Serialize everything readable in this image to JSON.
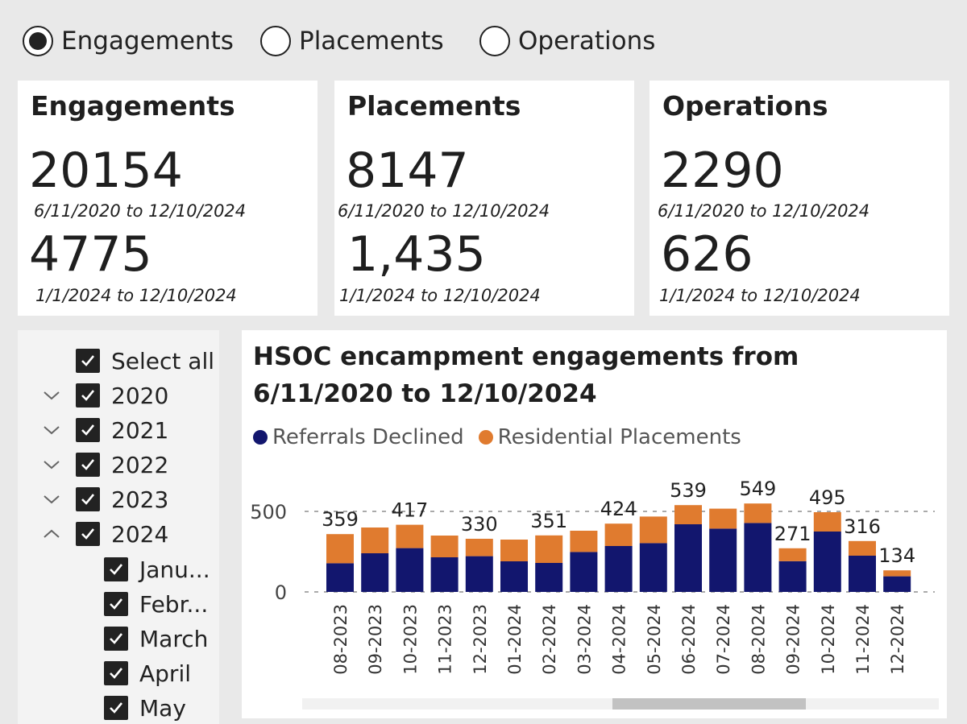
{
  "view_toggle": {
    "options": [
      "Engagements",
      "Placements",
      "Operations"
    ],
    "selected": "Engagements"
  },
  "kpis": [
    {
      "title": "Engagements",
      "total": "20154",
      "total_range": "6/11/2020 to 12/10/2024",
      "ytd": "4775",
      "ytd_range": "1/1/2024 to 12/10/2024"
    },
    {
      "title": "Placements",
      "total": "8147",
      "total_range": "6/11/2020 to 12/10/2024",
      "ytd": "1,435",
      "ytd_range": "1/1/2024 to 12/10/2024"
    },
    {
      "title": "Operations",
      "total": "2290",
      "total_range": "6/11/2020 to 12/10/2024",
      "ytd": "626",
      "ytd_range": "1/1/2024 to 12/10/2024"
    }
  ],
  "slicer": {
    "select_all": "Select all",
    "years": [
      {
        "label": "2020",
        "expanded": false
      },
      {
        "label": "2021",
        "expanded": false
      },
      {
        "label": "2022",
        "expanded": false
      },
      {
        "label": "2023",
        "expanded": false
      },
      {
        "label": "2024",
        "expanded": true
      }
    ],
    "months": [
      "Janu...",
      "Febr...",
      "March",
      "April",
      "May"
    ]
  },
  "chart_data": {
    "type": "bar",
    "stacked": true,
    "title": "HSOC encampment engagements from 6/11/2020 to 12/10/2024",
    "legend_position": "top-left",
    "categories": [
      "08-2023",
      "09-2023",
      "10-2023",
      "11-2023",
      "12-2023",
      "01-2024",
      "02-2024",
      "03-2024",
      "04-2024",
      "05-2024",
      "06-2024",
      "07-2024",
      "08-2024",
      "09-2024",
      "10-2024",
      "11-2024",
      "12-2024"
    ],
    "series": [
      {
        "name": "Referrals Declined",
        "color": "#12166e",
        "values": [
          178,
          240,
          272,
          215,
          222,
          190,
          180,
          248,
          285,
          303,
          420,
          393,
          428,
          191,
          375,
          225,
          97
        ]
      },
      {
        "name": "Residential Placements",
        "color": "#e07b2f",
        "values": [
          181,
          160,
          145,
          135,
          108,
          135,
          171,
          132,
          139,
          165,
          119,
          124,
          121,
          80,
          120,
          91,
          37
        ]
      }
    ],
    "totals": [
      359,
      400,
      417,
      350,
      330,
      325,
      351,
      380,
      424,
      468,
      539,
      517,
      549,
      271,
      495,
      316,
      134
    ],
    "total_labels_shown": [
      "359",
      null,
      "417",
      null,
      "330",
      null,
      "351",
      null,
      "424",
      null,
      "539",
      null,
      "549",
      "271",
      "495",
      "316",
      "134"
    ],
    "y_ticks": [
      0,
      500
    ],
    "ylim": [
      0,
      600
    ],
    "grid": "dashed",
    "scrollbar_position": 0.7
  }
}
